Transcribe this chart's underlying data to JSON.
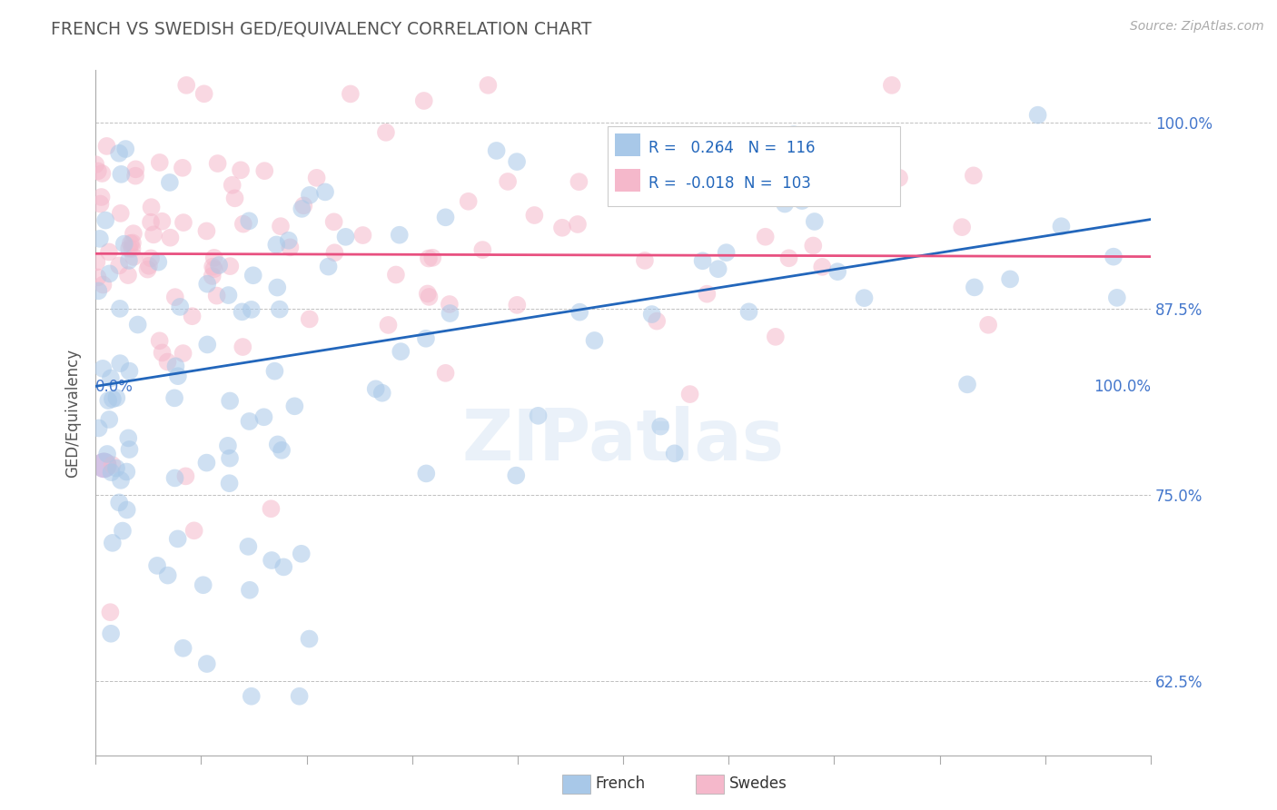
{
  "title": "FRENCH VS SWEDISH GED/EQUIVALENCY CORRELATION CHART",
  "source": "Source: ZipAtlas.com",
  "ylabel": "GED/Equivalency",
  "xlim": [
    0.0,
    1.0
  ],
  "ylim": [
    0.575,
    1.035
  ],
  "yticks": [
    0.625,
    0.75,
    0.875,
    1.0
  ],
  "ytick_labels": [
    "62.5%",
    "75.0%",
    "87.5%",
    "100.0%"
  ],
  "french_R": 0.264,
  "french_N": 116,
  "swedes_R": -0.018,
  "swedes_N": 103,
  "french_color": "#a8c8e8",
  "swedes_color": "#f5b8cb",
  "french_line_color": "#2266bb",
  "swedes_line_color": "#e85080",
  "title_color": "#555555",
  "axis_label_color": "#4477cc",
  "legend_r_color": "#2266bb",
  "background_color": "#ffffff",
  "french_line_y0": 0.823,
  "french_line_y1": 0.935,
  "swedes_line_y0": 0.912,
  "swedes_line_y1": 0.91,
  "scatter_size": 200,
  "scatter_alpha": 0.55,
  "seed": 77
}
